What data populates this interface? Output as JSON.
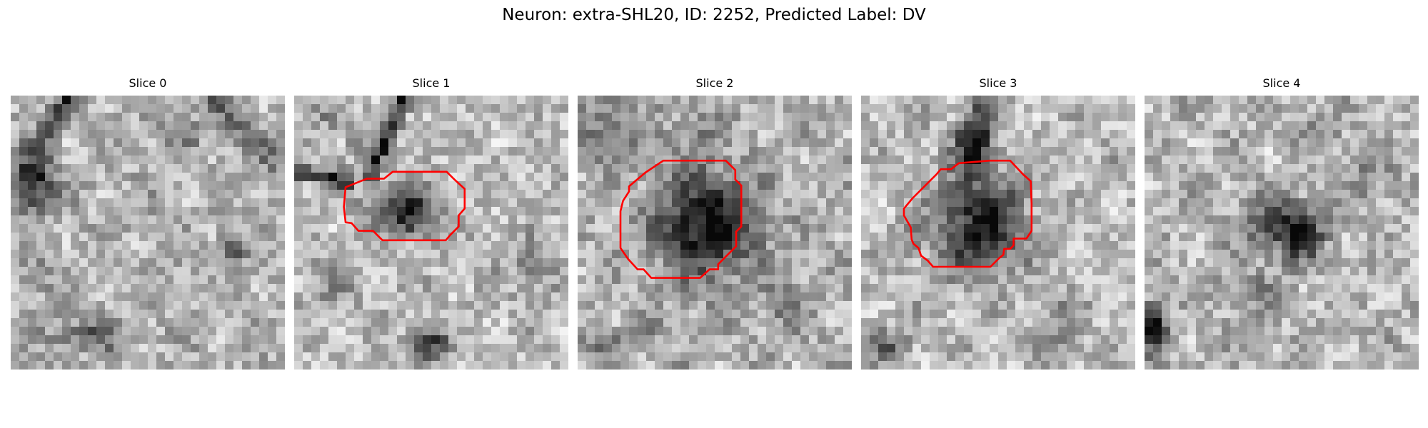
{
  "figure": {
    "title": "Neuron: extra-SHL20, ID: 2252, Predicted Label: DV"
  },
  "slices": [
    {
      "title": "Slice 0",
      "has_contour": false
    },
    {
      "title": "Slice 1",
      "has_contour": true
    },
    {
      "title": "Slice 2",
      "has_contour": true
    },
    {
      "title": "Slice 3",
      "has_contour": true
    },
    {
      "title": "Slice 4",
      "has_contour": false
    }
  ],
  "colors": {
    "contour": "#ff0000",
    "background": "#ffffff"
  },
  "colormap": "gray"
}
